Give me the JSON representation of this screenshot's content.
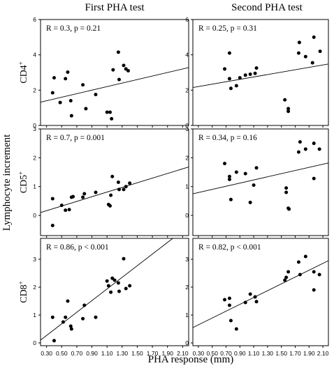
{
  "chart_data": {
    "type": "scatter",
    "column_titles": [
      "First PHA test",
      "Second PHA test"
    ],
    "xlabel": "PHA response (mm)",
    "ylabel": "Lymphocyte increment",
    "x_ticks": [
      "0.30",
      "0.50",
      "0.70",
      "0.90",
      "1.10",
      "1.30",
      "1.50",
      "1.70",
      "1.90",
      "2.10"
    ],
    "xlim": [
      0.22,
      2.18
    ],
    "rows": [
      {
        "label": "CD4",
        "label_sup": "+",
        "ylim": [
          0,
          6
        ],
        "y_ticks": [
          "0",
          "2",
          "4",
          "6"
        ],
        "panels": [
          {
            "stat": "R = 0.3, p = 0.21",
            "points": [
              [
                0.38,
                1.85
              ],
              [
                0.4,
                2.7
              ],
              [
                0.48,
                1.3
              ],
              [
                0.55,
                2.65
              ],
              [
                0.58,
                3.02
              ],
              [
                0.62,
                1.4
              ],
              [
                0.63,
                0.55
              ],
              [
                0.78,
                2.3
              ],
              [
                0.82,
                0.95
              ],
              [
                0.95,
                1.75
              ],
              [
                1.1,
                0.75
              ],
              [
                1.14,
                0.75
              ],
              [
                1.16,
                0.38
              ],
              [
                1.18,
                3.15
              ],
              [
                1.25,
                4.15
              ],
              [
                1.26,
                2.6
              ],
              [
                1.32,
                3.4
              ],
              [
                1.35,
                3.2
              ],
              [
                1.38,
                3.1
              ]
            ],
            "fit": [
              [
                0.22,
                1.32
              ],
              [
                2.18,
                3.28
              ]
            ]
          },
          {
            "stat": "R = 0.25, p = 0.31",
            "points": [
              [
                0.68,
                3.2
              ],
              [
                0.75,
                4.1
              ],
              [
                0.75,
                2.65
              ],
              [
                0.77,
                2.1
              ],
              [
                0.85,
                2.25
              ],
              [
                0.9,
                2.7
              ],
              [
                0.98,
                2.85
              ],
              [
                1.05,
                2.9
              ],
              [
                1.12,
                2.95
              ],
              [
                1.14,
                3.25
              ],
              [
                1.55,
                1.45
              ],
              [
                1.6,
                0.95
              ],
              [
                1.6,
                0.8
              ],
              [
                1.75,
                4.1
              ],
              [
                1.76,
                4.7
              ],
              [
                1.85,
                3.9
              ],
              [
                1.95,
                3.55
              ],
              [
                1.97,
                5.0
              ],
              [
                2.06,
                4.2
              ]
            ],
            "fit": [
              [
                0.22,
                2.15
              ],
              [
                2.18,
                3.48
              ]
            ]
          }
        ]
      },
      {
        "label": "CD5",
        "label_sup": "+",
        "ylim": [
          -0.7,
          3
        ],
        "y_ticks": [
          "0",
          "1",
          "2",
          "3"
        ],
        "panels": [
          {
            "stat": "R = 0.7, p = 0.001",
            "points": [
              [
                0.38,
                0.58
              ],
              [
                0.38,
                -0.35
              ],
              [
                0.5,
                0.35
              ],
              [
                0.55,
                0.18
              ],
              [
                0.6,
                0.2
              ],
              [
                0.63,
                0.63
              ],
              [
                0.65,
                0.65
              ],
              [
                0.78,
                0.63
              ],
              [
                0.8,
                0.75
              ],
              [
                0.95,
                0.8
              ],
              [
                1.12,
                0.38
              ],
              [
                1.14,
                0.33
              ],
              [
                1.15,
                0.7
              ],
              [
                1.17,
                1.35
              ],
              [
                1.25,
                1.15
              ],
              [
                1.26,
                0.9
              ],
              [
                1.32,
                0.9
              ],
              [
                1.35,
                1.0
              ],
              [
                1.4,
                1.12
              ]
            ],
            "fit": [
              [
                0.22,
                0.1
              ],
              [
                2.18,
                1.68
              ]
            ]
          },
          {
            "stat": "R = 0.34, p = 0.16",
            "points": [
              [
                0.68,
                1.8
              ],
              [
                0.75,
                1.35
              ],
              [
                0.75,
                1.25
              ],
              [
                0.77,
                0.55
              ],
              [
                0.85,
                1.5
              ],
              [
                0.98,
                1.45
              ],
              [
                1.05,
                0.45
              ],
              [
                1.1,
                1.05
              ],
              [
                1.14,
                1.65
              ],
              [
                1.57,
                0.95
              ],
              [
                1.57,
                0.8
              ],
              [
                1.6,
                0.25
              ],
              [
                1.61,
                0.22
              ],
              [
                1.75,
                2.2
              ],
              [
                1.77,
                2.55
              ],
              [
                1.85,
                2.3
              ],
              [
                1.97,
                2.5
              ],
              [
                1.97,
                1.28
              ],
              [
                2.05,
                2.3
              ]
            ],
            "fit": [
              [
                0.22,
                0.75
              ],
              [
                2.18,
                1.82
              ]
            ]
          }
        ]
      },
      {
        "label": "CD8",
        "label_sup": "+",
        "ylim": [
          -0.1,
          3.75
        ],
        "y_ticks": [
          "0",
          "1",
          "2",
          "3"
        ],
        "panels": [
          {
            "stat": "R = 0.86, p < 0.001",
            "points": [
              [
                0.38,
                0.92
              ],
              [
                0.4,
                0.08
              ],
              [
                0.52,
                0.75
              ],
              [
                0.55,
                0.92
              ],
              [
                0.58,
                1.5
              ],
              [
                0.62,
                0.6
              ],
              [
                0.63,
                0.5
              ],
              [
                0.78,
                0.87
              ],
              [
                0.8,
                1.35
              ],
              [
                0.95,
                0.92
              ],
              [
                1.1,
                2.22
              ],
              [
                1.12,
                2.05
              ],
              [
                1.15,
                1.82
              ],
              [
                1.17,
                2.32
              ],
              [
                1.2,
                2.25
              ],
              [
                1.25,
                2.15
              ],
              [
                1.26,
                1.85
              ],
              [
                1.32,
                3.02
              ],
              [
                1.35,
                1.95
              ],
              [
                1.4,
                2.05
              ]
            ],
            "fit": [
              [
                0.22,
                0.1
              ],
              [
                1.97,
                3.75
              ]
            ]
          },
          {
            "stat": "R = 0.82, p < 0.001",
            "points": [
              [
                0.68,
                1.55
              ],
              [
                0.75,
                1.35
              ],
              [
                0.75,
                1.6
              ],
              [
                0.77,
                0.8
              ],
              [
                0.85,
                0.5
              ],
              [
                0.98,
                1.45
              ],
              [
                1.05,
                1.75
              ],
              [
                1.12,
                1.65
              ],
              [
                1.14,
                1.48
              ],
              [
                1.55,
                2.25
              ],
              [
                1.57,
                2.35
              ],
              [
                1.6,
                2.55
              ],
              [
                1.75,
                2.9
              ],
              [
                1.77,
                2.45
              ],
              [
                1.85,
                3.1
              ],
              [
                1.97,
                2.55
              ],
              [
                1.97,
                1.9
              ],
              [
                2.05,
                2.45
              ]
            ],
            "fit": [
              [
                0.22,
                0.55
              ],
              [
                2.18,
                2.95
              ]
            ]
          }
        ]
      }
    ]
  }
}
